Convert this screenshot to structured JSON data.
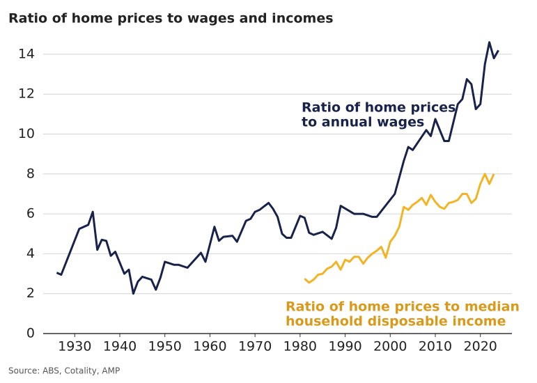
{
  "chart_data": {
    "type": "line",
    "title": "Ratio of home prices to wages and incomes",
    "source": "Source: ABS, Cotality, AMP",
    "xlim": [
      1923,
      2027
    ],
    "xticks": [
      1930,
      1940,
      1950,
      1960,
      1970,
      1980,
      1990,
      2000,
      2010,
      2020
    ],
    "ylim": [
      0,
      14.8
    ],
    "yticks": [
      0,
      2,
      4,
      6,
      8,
      10,
      12,
      14
    ],
    "grid": true,
    "series": [
      {
        "name": "Ratio of home prices to annual wages",
        "color": "#18224a",
        "x": [
          1926,
          1927,
          1931,
          1933,
          1934,
          1935,
          1936,
          1937,
          1938,
          1939,
          1941,
          1942,
          1943,
          1944,
          1945,
          1947,
          1948,
          1949,
          1950,
          1952,
          1953,
          1955,
          1958,
          1959,
          1961,
          1962,
          1963,
          1965,
          1966,
          1968,
          1969,
          1970,
          1971,
          1973,
          1974,
          1975,
          1976,
          1977,
          1978,
          1980,
          1981,
          1982,
          1983,
          1985,
          1987,
          1988,
          1989,
          1992,
          1994,
          1996,
          1997,
          2001,
          2003,
          2004,
          2005,
          2008,
          2009,
          2010,
          2012,
          2013,
          2015,
          2016,
          2017,
          2018,
          2019,
          2020,
          2021,
          2022,
          2023,
          2024
        ],
        "values": [
          3.05,
          2.95,
          5.25,
          5.45,
          6.1,
          4.2,
          4.7,
          4.65,
          3.9,
          4.1,
          3.0,
          3.2,
          2.0,
          2.6,
          2.85,
          2.7,
          2.2,
          2.8,
          3.6,
          3.45,
          3.45,
          3.3,
          4.05,
          3.6,
          5.35,
          4.65,
          4.85,
          4.9,
          4.6,
          5.65,
          5.75,
          6.1,
          6.2,
          6.55,
          6.25,
          5.85,
          5.0,
          4.8,
          4.8,
          5.9,
          5.8,
          5.05,
          4.95,
          5.1,
          4.75,
          5.3,
          6.4,
          6.0,
          6.0,
          5.85,
          5.85,
          7.0,
          8.65,
          9.35,
          9.2,
          10.2,
          9.9,
          10.75,
          9.65,
          9.65,
          11.5,
          11.75,
          12.75,
          12.5,
          11.25,
          11.5,
          13.5,
          14.6,
          13.8,
          14.2
        ]
      },
      {
        "name": "Ratio of home prices to median household disposable income",
        "color": "#f2b425",
        "x": [
          1981,
          1982,
          1983,
          1984,
          1985,
          1986,
          1987,
          1988,
          1989,
          1990,
          1991,
          1992,
          1993,
          1994,
          1995,
          1996,
          1997,
          1998,
          1999,
          2000,
          2001,
          2002,
          2003,
          2004,
          2005,
          2006,
          2007,
          2008,
          2009,
          2010,
          2011,
          2012,
          2013,
          2014,
          2015,
          2016,
          2017,
          2018,
          2019,
          2020,
          2021,
          2022,
          2023
        ],
        "values": [
          2.75,
          2.55,
          2.7,
          2.95,
          3.0,
          3.25,
          3.35,
          3.6,
          3.2,
          3.7,
          3.6,
          3.85,
          3.85,
          3.5,
          3.8,
          4.0,
          4.15,
          4.35,
          3.8,
          4.6,
          4.9,
          5.35,
          6.35,
          6.2,
          6.45,
          6.6,
          6.8,
          6.45,
          6.95,
          6.6,
          6.35,
          6.25,
          6.55,
          6.6,
          6.7,
          7.0,
          7.0,
          6.55,
          6.75,
          7.5,
          8.0,
          7.5,
          8.0
        ]
      }
    ],
    "annotations": [
      {
        "lines": [
          "Ratio of home prices",
          "to annual wages"
        ],
        "color": "#18224a"
      },
      {
        "lines": [
          "Ratio of home prices to median",
          "household disposable income"
        ],
        "color": "#d99a1c"
      }
    ]
  }
}
